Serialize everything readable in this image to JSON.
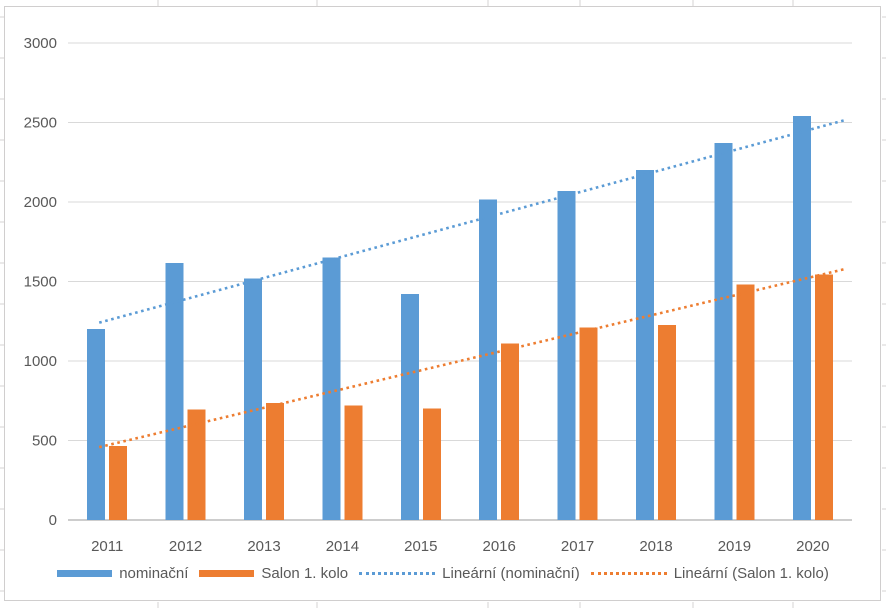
{
  "chart_data": {
    "type": "bar",
    "title": "",
    "xlabel": "",
    "ylabel": "",
    "categories": [
      "2011",
      "2012",
      "2013",
      "2014",
      "2015",
      "2016",
      "2017",
      "2018",
      "2019",
      "2020"
    ],
    "series": [
      {
        "name": "nominační",
        "color": "#5B9BD5",
        "values": [
          1200,
          1615,
          1520,
          1650,
          1420,
          2015,
          2070,
          2200,
          2370,
          2540
        ]
      },
      {
        "name": "Salon 1. kolo",
        "color": "#ED7D31",
        "values": [
          465,
          695,
          735,
          720,
          700,
          1110,
          1210,
          1225,
          1480,
          1545
        ]
      }
    ],
    "trendlines": [
      {
        "name": "Lineární (nominační)",
        "color": "#5B9BD5",
        "style": "dotted",
        "start": 1255,
        "end": 2460
      },
      {
        "name": "Lineární (Salon 1. kolo)",
        "color": "#ED7D31",
        "style": "dotted",
        "start": 470,
        "end": 1530
      }
    ],
    "y_axis": {
      "min": 0,
      "max": 3000,
      "step": 500,
      "tick_labels": [
        "0",
        "500",
        "1000",
        "1500",
        "2000",
        "2500",
        "3000"
      ]
    },
    "grid": true,
    "legend": {
      "position": "bottom",
      "entries": [
        {
          "label": "nominační",
          "swatch": "bar",
          "color": "#5B9BD5"
        },
        {
          "label": "Salon 1. kolo",
          "swatch": "bar",
          "color": "#ED7D31"
        },
        {
          "label": "Lineární (nominační)",
          "swatch": "line",
          "color": "#5B9BD5"
        },
        {
          "label": "Lineární (Salon 1. kolo)",
          "swatch": "line",
          "color": "#ED7D31"
        }
      ]
    }
  },
  "colors": {
    "series_blue": "#5B9BD5",
    "series_orange": "#ED7D31",
    "gridline": "#D9D9D9",
    "axis_line": "#CDCDCD",
    "label_text": "#595959",
    "chart_border": "#D0CECE",
    "sheet_line": "#D5D3D3",
    "background": "#FFFFFF"
  }
}
